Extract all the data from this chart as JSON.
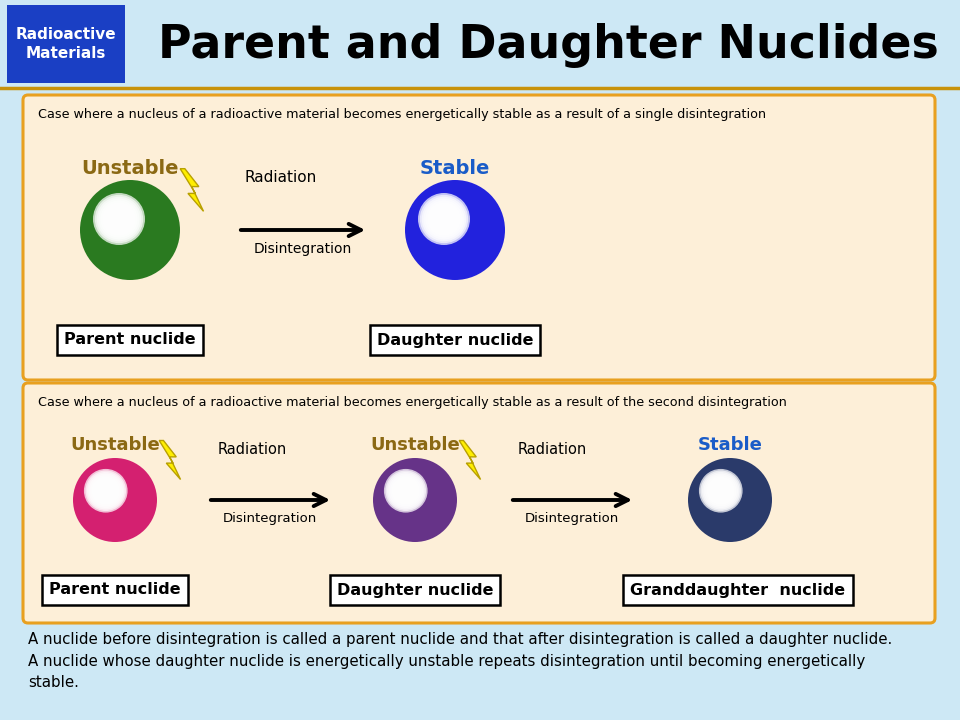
{
  "title": "Parent and Daughter Nuclides",
  "title_tag": "Radioactive\nMaterials",
  "bg_color": "#cde8f5",
  "header_bg": "#cde8f5",
  "tag_color": "#1a3fc4",
  "box_bg": "#fdefd8",
  "box_border": "#e8a020",
  "case1_text": "Case where a nucleus of a radioactive material becomes energetically stable as a result of a single disintegration",
  "case2_text": "Case where a nucleus of a radioactive material becomes energetically stable as a result of the second disintegration",
  "footer_text": "A nuclide before disintegration is called a parent nuclide and that after disintegration is called a daughter nuclide.\nA nuclide whose daughter nuclide is energetically unstable repeats disintegration until becoming energetically\nstable.",
  "unstable_color": "#8B6914",
  "stable_color_blue": "#1a5cc8",
  "footer_bg": "#ffffff"
}
